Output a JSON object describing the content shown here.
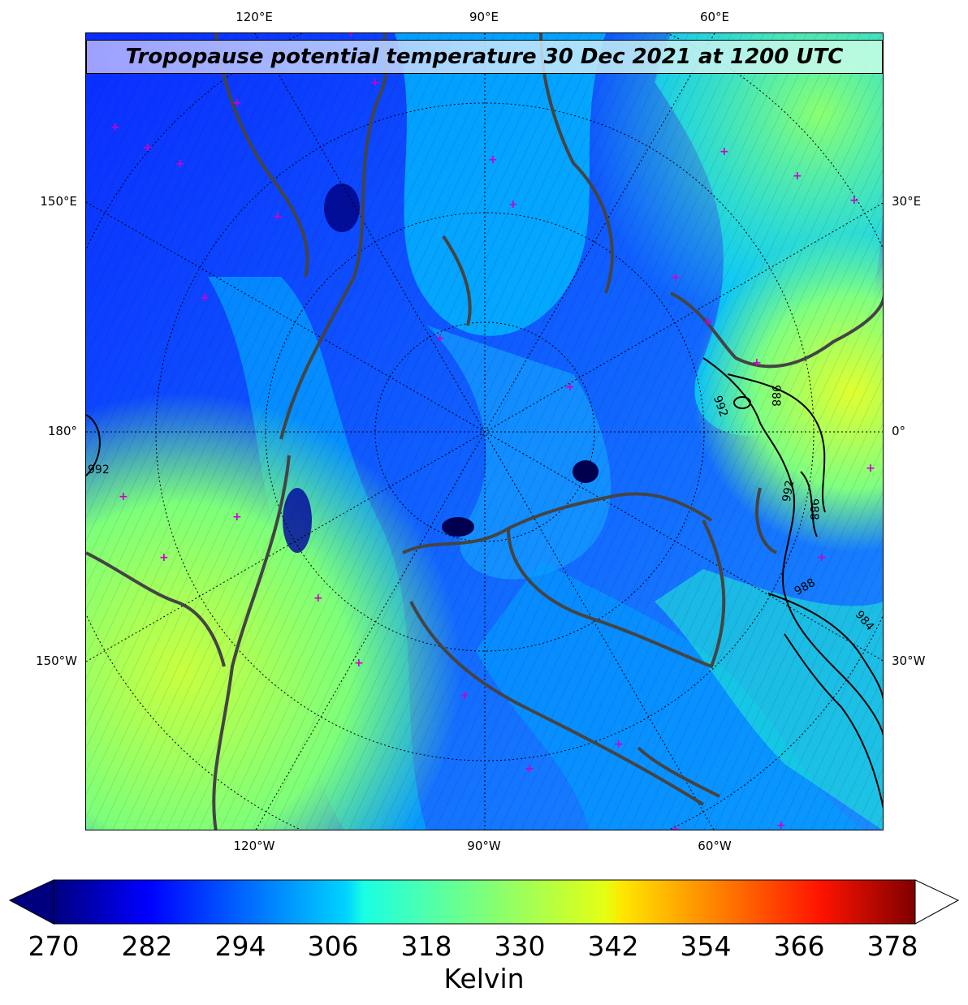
{
  "title": "Tropopause potential temperature 30 Dec 2021 at 1200 UTC",
  "graticule_labels": {
    "top": [
      "120°E",
      "90°E",
      "60°E"
    ],
    "bottom": [
      "120°W",
      "90°W",
      "60°W"
    ],
    "left": [
      "150°E",
      "180°",
      "150°W"
    ],
    "right": [
      "30°E",
      "0°",
      "30°W"
    ]
  },
  "pressure_contour_labels": [
    "992",
    "988",
    "992",
    "988",
    "992",
    "988",
    "984",
    "992"
  ],
  "colorbar": {
    "ticks": [
      "270",
      "282",
      "294",
      "306",
      "318",
      "330",
      "342",
      "354",
      "366",
      "378"
    ],
    "label": "Kelvin",
    "min": 270,
    "max": 381,
    "colormap": "jet",
    "extend": "both"
  },
  "colors": {
    "coastline": "#444444",
    "station_marker": "#cc00cc",
    "contour": "#000000"
  }
}
